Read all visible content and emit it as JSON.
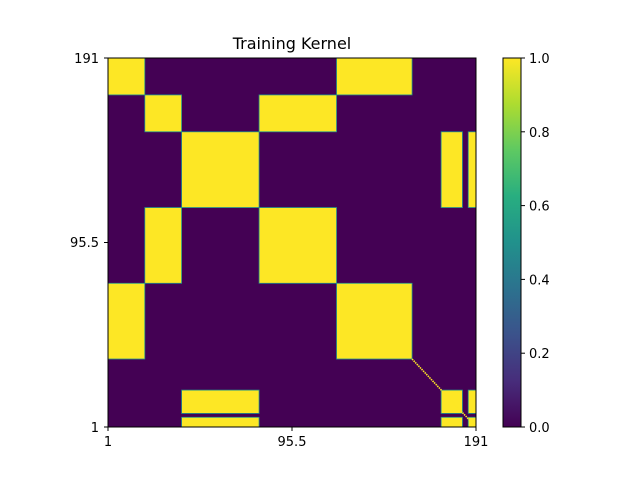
{
  "chart_data": {
    "type": "heatmap",
    "title": "Training Kernel",
    "xlabel": "",
    "ylabel": "",
    "x_ticks": [
      "1",
      "95.5",
      "191"
    ],
    "y_ticks": [
      "191",
      "95.5",
      "1"
    ],
    "xlim": [
      1,
      191
    ],
    "ylim": [
      1,
      191
    ],
    "colormap": "viridis",
    "background_value": 0.0,
    "colorbar": {
      "range": [
        0.0,
        1.0
      ],
      "ticks": [
        "1.0",
        "0.8",
        "0.6",
        "0.4",
        "0.2",
        "0.0"
      ]
    },
    "blocks": [
      {
        "x": [
          1,
          20
        ],
        "y": [
          172,
          191
        ],
        "value": 1.0
      },
      {
        "x": [
          119,
          158
        ],
        "y": [
          172,
          191
        ],
        "value": 1.0
      },
      {
        "x": [
          20,
          39
        ],
        "y": [
          153,
          172
        ],
        "value": 1.0
      },
      {
        "x": [
          79,
          119
        ],
        "y": [
          153,
          172
        ],
        "value": 1.0
      },
      {
        "x": [
          39,
          79
        ],
        "y": [
          114,
          153
        ],
        "value": 1.0
      },
      {
        "x": [
          173,
          184
        ],
        "y": [
          114,
          153
        ],
        "value": 1.0
      },
      {
        "x": [
          187,
          191
        ],
        "y": [
          114,
          153
        ],
        "value": 1.0
      },
      {
        "x": [
          20,
          39
        ],
        "y": [
          75,
          114
        ],
        "value": 1.0
      },
      {
        "x": [
          79,
          119
        ],
        "y": [
          75,
          114
        ],
        "value": 1.0
      },
      {
        "x": [
          1,
          20
        ],
        "y": [
          36,
          75
        ],
        "value": 1.0
      },
      {
        "x": [
          119,
          158
        ],
        "y": [
          36,
          75
        ],
        "value": 1.0
      },
      {
        "x": [
          39,
          79
        ],
        "y": [
          8,
          20
        ],
        "value": 1.0
      },
      {
        "x": [
          39,
          79
        ],
        "y": [
          1,
          6
        ],
        "value": 1.0
      },
      {
        "x": [
          173,
          184
        ],
        "y": [
          8,
          20
        ],
        "value": 1.0
      },
      {
        "x": [
          173,
          184
        ],
        "y": [
          1,
          6
        ],
        "value": 1.0
      },
      {
        "x": [
          187,
          191
        ],
        "y": [
          8,
          20
        ],
        "value": 1.0
      },
      {
        "x": [
          187,
          191
        ],
        "y": [
          1,
          6
        ],
        "value": 1.0
      }
    ],
    "diagonal": {
      "from": [
        158,
        36
      ],
      "to": [
        191,
        1
      ],
      "value": 1.0
    }
  }
}
